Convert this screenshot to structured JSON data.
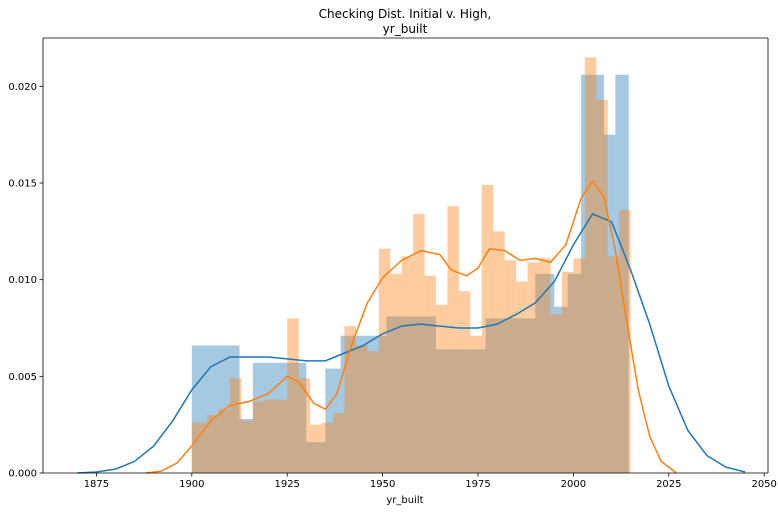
{
  "chart_data": {
    "type": "histogram",
    "title_line1": "Checking Dist. Initial v. High,",
    "title_line2": "yr_built",
    "xlabel": "yr_built",
    "ylabel": "",
    "xlim": [
      1861,
      2051
    ],
    "ylim": [
      0,
      0.0225
    ],
    "xticks": [
      1875,
      1900,
      1925,
      1950,
      1975,
      2000,
      2025,
      2050
    ],
    "yticks": [
      0.0,
      0.005,
      0.01,
      0.015,
      0.02
    ],
    "ytick_labels": [
      "0.000",
      "0.005",
      "0.010",
      "0.015",
      "0.020"
    ],
    "grid": false,
    "series": [
      {
        "color": "#1f77b4",
        "bar_opacity": 0.4,
        "bins": [
          {
            "x0": 1900,
            "x1": 1912.5,
            "value": 0.0066
          },
          {
            "x0": 1912.5,
            "x1": 1916,
            "value": 0.0028
          },
          {
            "x0": 1916,
            "x1": 1925,
            "value": 0.0057
          },
          {
            "x0": 1925,
            "x1": 1930,
            "value": 0.0057
          },
          {
            "x0": 1930,
            "x1": 1935,
            "value": 0.0016
          },
          {
            "x0": 1935,
            "x1": 1939,
            "value": 0.0054
          },
          {
            "x0": 1939,
            "x1": 1951,
            "value": 0.0071
          },
          {
            "x0": 1951,
            "x1": 1964,
            "value": 0.0081
          },
          {
            "x0": 1964,
            "x1": 1977,
            "value": 0.0064
          },
          {
            "x0": 1977,
            "x1": 1990,
            "value": 0.008
          },
          {
            "x0": 1990,
            "x1": 1995,
            "value": 0.0103
          },
          {
            "x0": 1995,
            "x1": 1998.5,
            "value": 0.0086
          },
          {
            "x0": 1998.5,
            "x1": 2002,
            "value": 0.0103
          },
          {
            "x0": 2002,
            "x1": 2008,
            "value": 0.0206
          },
          {
            "x0": 2008,
            "x1": 2011,
            "value": 0.0175
          },
          {
            "x0": 2011,
            "x1": 2014.5,
            "value": 0.0206
          }
        ],
        "kde": [
          [
            1870,
            0.0
          ],
          [
            1875,
            5e-05
          ],
          [
            1880,
            0.0002
          ],
          [
            1885,
            0.0006
          ],
          [
            1890,
            0.0014
          ],
          [
            1895,
            0.0027
          ],
          [
            1900,
            0.0043
          ],
          [
            1905,
            0.0055
          ],
          [
            1910,
            0.006
          ],
          [
            1915,
            0.006
          ],
          [
            1920,
            0.006
          ],
          [
            1925,
            0.0059
          ],
          [
            1930,
            0.0058
          ],
          [
            1935,
            0.0058
          ],
          [
            1940,
            0.0062
          ],
          [
            1945,
            0.0066
          ],
          [
            1950,
            0.0072
          ],
          [
            1955,
            0.0076
          ],
          [
            1960,
            0.0077
          ],
          [
            1965,
            0.0076
          ],
          [
            1970,
            0.0075
          ],
          [
            1975,
            0.0075
          ],
          [
            1980,
            0.0077
          ],
          [
            1985,
            0.0082
          ],
          [
            1990,
            0.0088
          ],
          [
            1995,
            0.0099
          ],
          [
            2000,
            0.0118
          ],
          [
            2005,
            0.0134
          ],
          [
            2010,
            0.013
          ],
          [
            2015,
            0.0105
          ],
          [
            2020,
            0.0077
          ],
          [
            2025,
            0.0045
          ],
          [
            2030,
            0.0022
          ],
          [
            2035,
            0.0009
          ],
          [
            2040,
            0.0003
          ],
          [
            2045,
            5e-05
          ]
        ]
      },
      {
        "color": "#ff7f0e",
        "bar_opacity": 0.4,
        "bins": [
          {
            "x0": 1900,
            "x1": 1904,
            "value": 0.0026
          },
          {
            "x0": 1904,
            "x1": 1907,
            "value": 0.003
          },
          {
            "x0": 1907,
            "x1": 1910,
            "value": 0.0033
          },
          {
            "x0": 1910,
            "x1": 1913,
            "value": 0.0049
          },
          {
            "x0": 1913,
            "x1": 1916,
            "value": 0.0027
          },
          {
            "x0": 1916,
            "x1": 1919,
            "value": 0.0037
          },
          {
            "x0": 1919,
            "x1": 1922,
            "value": 0.0038
          },
          {
            "x0": 1922,
            "x1": 1925,
            "value": 0.0038
          },
          {
            "x0": 1925,
            "x1": 1928,
            "value": 0.008
          },
          {
            "x0": 1928,
            "x1": 1931,
            "value": 0.0049
          },
          {
            "x0": 1931,
            "x1": 1934,
            "value": 0.0025
          },
          {
            "x0": 1934,
            "x1": 1937,
            "value": 0.0026
          },
          {
            "x0": 1937,
            "x1": 1940,
            "value": 0.0031
          },
          {
            "x0": 1940,
            "x1": 1943,
            "value": 0.0076
          },
          {
            "x0": 1943,
            "x1": 1946,
            "value": 0.0066
          },
          {
            "x0": 1946,
            "x1": 1949,
            "value": 0.0063
          },
          {
            "x0": 1949,
            "x1": 1952,
            "value": 0.0116
          },
          {
            "x0": 1952,
            "x1": 1955,
            "value": 0.0103
          },
          {
            "x0": 1955,
            "x1": 1958,
            "value": 0.0112
          },
          {
            "x0": 1958,
            "x1": 1961,
            "value": 0.0134
          },
          {
            "x0": 1961,
            "x1": 1964,
            "value": 0.0102
          },
          {
            "x0": 1964,
            "x1": 1967,
            "value": 0.0087
          },
          {
            "x0": 1967,
            "x1": 1970,
            "value": 0.0138
          },
          {
            "x0": 1970,
            "x1": 1973,
            "value": 0.0094
          },
          {
            "x0": 1973,
            "x1": 1976,
            "value": 0.0071
          },
          {
            "x0": 1976,
            "x1": 1979,
            "value": 0.0149
          },
          {
            "x0": 1979,
            "x1": 1982,
            "value": 0.0125
          },
          {
            "x0": 1982,
            "x1": 1985,
            "value": 0.011
          },
          {
            "x0": 1985,
            "x1": 1988,
            "value": 0.0099
          },
          {
            "x0": 1988,
            "x1": 1991,
            "value": 0.0109
          },
          {
            "x0": 1991,
            "x1": 1994,
            "value": 0.0111
          },
          {
            "x0": 1994,
            "x1": 1997,
            "value": 0.0082
          },
          {
            "x0": 1997,
            "x1": 2000,
            "value": 0.0104
          },
          {
            "x0": 2000,
            "x1": 2003,
            "value": 0.0111
          },
          {
            "x0": 2003,
            "x1": 2006,
            "value": 0.0215
          },
          {
            "x0": 2006,
            "x1": 2009,
            "value": 0.0193
          },
          {
            "x0": 2009,
            "x1": 2012,
            "value": 0.0112
          },
          {
            "x0": 2012,
            "x1": 2015,
            "value": 0.0136
          }
        ],
        "kde": [
          [
            1888,
            0.0
          ],
          [
            1892,
            0.0001
          ],
          [
            1896,
            0.0005
          ],
          [
            1900,
            0.0014
          ],
          [
            1905,
            0.0027
          ],
          [
            1910,
            0.0035
          ],
          [
            1915,
            0.0037
          ],
          [
            1920,
            0.0041
          ],
          [
            1925,
            0.005
          ],
          [
            1928,
            0.0047
          ],
          [
            1932,
            0.0036
          ],
          [
            1935,
            0.0033
          ],
          [
            1938,
            0.0041
          ],
          [
            1942,
            0.0067
          ],
          [
            1946,
            0.0088
          ],
          [
            1950,
            0.0101
          ],
          [
            1955,
            0.011
          ],
          [
            1960,
            0.0115
          ],
          [
            1965,
            0.0113
          ],
          [
            1968,
            0.0105
          ],
          [
            1972,
            0.0102
          ],
          [
            1975,
            0.0106
          ],
          [
            1978,
            0.0116
          ],
          [
            1982,
            0.0115
          ],
          [
            1986,
            0.011
          ],
          [
            1990,
            0.0111
          ],
          [
            1994,
            0.0109
          ],
          [
            1998,
            0.0118
          ],
          [
            2002,
            0.0142
          ],
          [
            2005,
            0.0151
          ],
          [
            2008,
            0.0143
          ],
          [
            2011,
            0.0115
          ],
          [
            2014,
            0.0078
          ],
          [
            2017,
            0.0043
          ],
          [
            2020,
            0.0019
          ],
          [
            2023,
            0.0006
          ],
          [
            2027,
            0.0
          ]
        ]
      }
    ]
  }
}
